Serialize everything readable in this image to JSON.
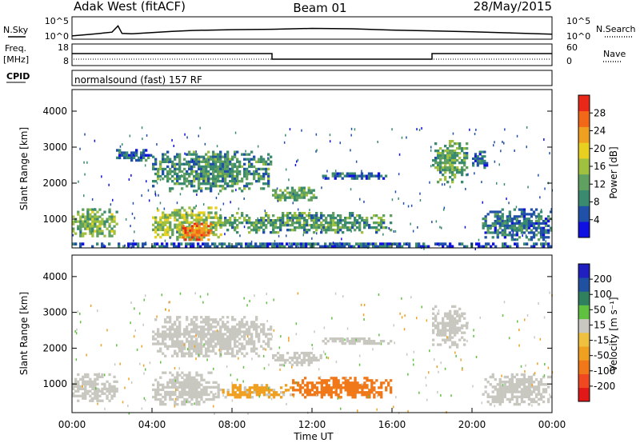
{
  "header": {
    "station": "Adak West (fitACF)",
    "beam": "Beam 01",
    "date": "28/May/2015"
  },
  "colors": {
    "power": [
      "#1010e0",
      "#2050a8",
      "#3a8a70",
      "#60a060",
      "#a0c040",
      "#e8d020",
      "#f0a020",
      "#f06818",
      "#e82818"
    ],
    "velocity": [
      "#e01818",
      "#f04820",
      "#f07818",
      "#f0a020",
      "#f0c040",
      "#c8c8c0",
      "#60c040",
      "#308060",
      "#2050a0",
      "#2020c0"
    ]
  },
  "chart_data": [
    {
      "type": "line",
      "panel": "noise",
      "left_label": "N.Sky",
      "right_label": "N.Search",
      "left_ticks": [
        "10^5",
        "10^0"
      ],
      "right_ticks": [
        "10^5",
        "10^0"
      ],
      "x_hours": [
        0,
        1,
        2,
        2.3,
        2.5,
        3,
        4,
        5,
        6,
        8,
        10,
        12,
        14,
        16,
        18,
        20,
        22,
        24
      ],
      "n_sky_log10": [
        0.6,
        1.0,
        1.5,
        3.0,
        1.2,
        1.1,
        1.4,
        1.7,
        1.9,
        2.1,
        2.2,
        2.4,
        2.3,
        2.0,
        1.8,
        1.6,
        1.3,
        1.0
      ]
    },
    {
      "type": "line",
      "panel": "frequency",
      "left_label": "Freq.",
      "left_unit": "[MHz]",
      "right_label": "Nave",
      "left_ticks": [
        "18",
        "8"
      ],
      "right_ticks": [
        "60",
        "0"
      ],
      "freq_segments": [
        {
          "from": 0,
          "to": 10,
          "value": 13.6
        },
        {
          "from": 10,
          "to": 18,
          "value": 10.8
        },
        {
          "from": 18,
          "to": 24,
          "value": 13.6
        }
      ]
    },
    {
      "type": "table",
      "panel": "cpid",
      "left_label": "CPID",
      "text": "normalsound (fast) 157 RF"
    },
    {
      "type": "heatmap",
      "panel": "power",
      "ylabel": "Slant Range [km]",
      "yticks": [
        "4000",
        "3000",
        "2000",
        "1000"
      ],
      "ytick_values": [
        4000,
        3000,
        2000,
        1000
      ],
      "ylim": [
        200,
        4600
      ],
      "xlim": [
        0,
        24
      ],
      "colorbar_label": "Power [dB]",
      "colorbar_ticks": [
        "28",
        "24",
        "20",
        "16",
        "12",
        "8",
        "4"
      ],
      "colorbar_range": [
        0,
        32
      ],
      "regions": [
        {
          "t0": 0.0,
          "t1": 2.3,
          "r0": 500,
          "r1": 1300,
          "level": 14
        },
        {
          "t0": 4.0,
          "t1": 7.5,
          "r0": 400,
          "r1": 1350,
          "level": 16
        },
        {
          "t0": 5.5,
          "t1": 7.0,
          "r0": 400,
          "r1": 900,
          "level": 26
        },
        {
          "t0": 4.0,
          "t1": 10.0,
          "r0": 1750,
          "r1": 2900,
          "level": 10
        },
        {
          "t0": 2.2,
          "t1": 4.0,
          "r0": 2600,
          "r1": 2950,
          "level": 6
        },
        {
          "t0": 10.0,
          "t1": 12.5,
          "r0": 1500,
          "r1": 1900,
          "level": 12
        },
        {
          "t0": 7.0,
          "t1": 16.0,
          "r0": 600,
          "r1": 1200,
          "level": 11
        },
        {
          "t0": 12.5,
          "t1": 16.0,
          "r0": 2100,
          "r1": 2300,
          "level": 6
        },
        {
          "t0": 18.0,
          "t1": 19.8,
          "r0": 2000,
          "r1": 3200,
          "level": 12
        },
        {
          "t0": 20.0,
          "t1": 20.8,
          "r0": 2400,
          "r1": 2900,
          "level": 6
        },
        {
          "t0": 20.5,
          "t1": 24.0,
          "r0": 400,
          "r1": 1300,
          "level": 8
        },
        {
          "t0": 0.0,
          "t1": 24.0,
          "r0": 200,
          "r1": 350,
          "level": 6
        }
      ]
    },
    {
      "type": "heatmap",
      "panel": "velocity",
      "ylabel": "Slant Range [km]",
      "yticks": [
        "4000",
        "3000",
        "2000",
        "1000"
      ],
      "ytick_values": [
        4000,
        3000,
        2000,
        1000
      ],
      "ylim": [
        200,
        4600
      ],
      "xlim": [
        0,
        24
      ],
      "xlabel": "Time UT",
      "xticks": [
        "00:00",
        "04:00",
        "08:00",
        "12:00",
        "16:00",
        "20:00",
        "00:00"
      ],
      "xtick_values": [
        0,
        4,
        8,
        12,
        16,
        20,
        24
      ],
      "colorbar_label": "Velocity [m s⁻¹]",
      "colorbar_ticks": [
        "200",
        "100",
        "50",
        "15",
        "-15",
        "-50",
        "-100",
        "-200"
      ],
      "regions": [
        {
          "t0": 0.0,
          "t1": 2.3,
          "r0": 500,
          "r1": 1300,
          "velocity": 0
        },
        {
          "t0": 4.0,
          "t1": 7.5,
          "r0": 400,
          "r1": 1350,
          "velocity": 0
        },
        {
          "t0": 4.0,
          "t1": 10.0,
          "r0": 1750,
          "r1": 2900,
          "velocity": 0
        },
        {
          "t0": 10.0,
          "t1": 12.5,
          "r0": 1500,
          "r1": 1900,
          "velocity": 0
        },
        {
          "t0": 7.5,
          "t1": 11.0,
          "r0": 600,
          "r1": 1000,
          "velocity": -20
        },
        {
          "t0": 11.0,
          "t1": 16.0,
          "r0": 600,
          "r1": 1200,
          "velocity": -60
        },
        {
          "t0": 12.5,
          "t1": 16.0,
          "r0": 2100,
          "r1": 2300,
          "velocity": 0
        },
        {
          "t0": 18.0,
          "t1": 19.8,
          "r0": 2000,
          "r1": 3200,
          "velocity": 0
        },
        {
          "t0": 20.5,
          "t1": 24.0,
          "r0": 400,
          "r1": 1300,
          "velocity": 0
        }
      ]
    }
  ]
}
